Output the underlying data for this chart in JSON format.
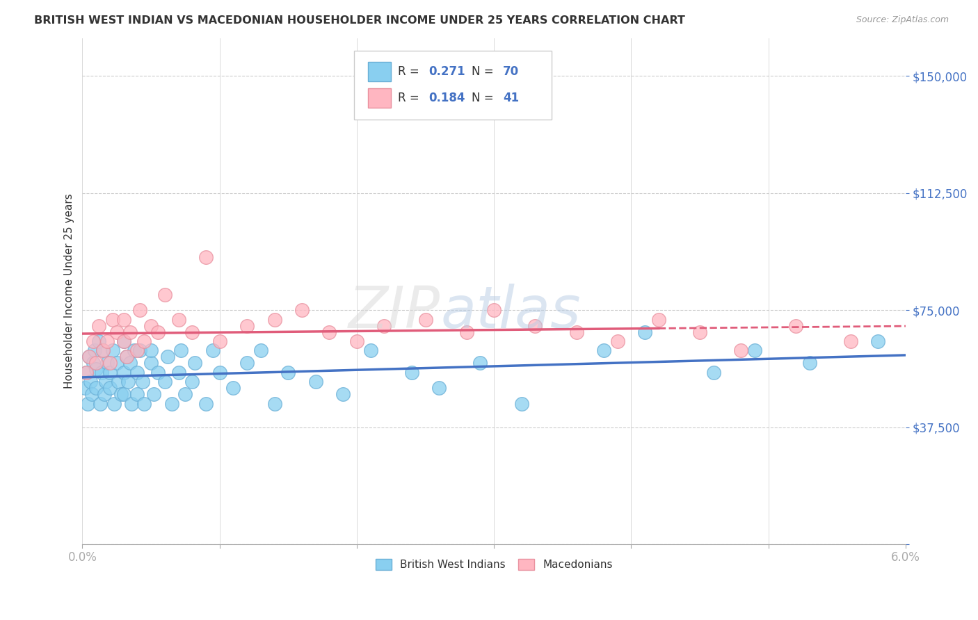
{
  "title": "BRITISH WEST INDIAN VS MACEDONIAN HOUSEHOLDER INCOME UNDER 25 YEARS CORRELATION CHART",
  "source": "Source: ZipAtlas.com",
  "ylabel": "Householder Income Under 25 years",
  "yticks": [
    0,
    37500,
    75000,
    112500,
    150000
  ],
  "ytick_labels": [
    "",
    "$37,500",
    "$75,000",
    "$112,500",
    "$150,000"
  ],
  "xlim": [
    0.0,
    0.06
  ],
  "ylim": [
    0,
    162000
  ],
  "legend1_R": "0.271",
  "legend1_N": "70",
  "legend2_R": "0.184",
  "legend2_N": "41",
  "blue_color": "#89CFF0",
  "blue_edge": "#6aafd6",
  "pink_color": "#FFB6C1",
  "pink_edge": "#e8909e",
  "line_blue": "#4472c4",
  "line_pink": "#e05c7a",
  "watermark_zip": "ZIP",
  "watermark_atlas": "atlas",
  "blue_points_x": [
    0.0002,
    0.0003,
    0.0004,
    0.0005,
    0.0006,
    0.0007,
    0.0008,
    0.0009,
    0.001,
    0.001,
    0.0012,
    0.0013,
    0.0014,
    0.0015,
    0.0016,
    0.0017,
    0.0018,
    0.002,
    0.002,
    0.0022,
    0.0023,
    0.0025,
    0.0026,
    0.0028,
    0.003,
    0.003,
    0.003,
    0.0032,
    0.0033,
    0.0035,
    0.0036,
    0.0038,
    0.004,
    0.004,
    0.0042,
    0.0044,
    0.0045,
    0.005,
    0.005,
    0.0052,
    0.0055,
    0.006,
    0.0062,
    0.0065,
    0.007,
    0.0072,
    0.0075,
    0.008,
    0.0082,
    0.009,
    0.0095,
    0.01,
    0.011,
    0.012,
    0.013,
    0.014,
    0.015,
    0.017,
    0.019,
    0.021,
    0.024,
    0.026,
    0.029,
    0.032,
    0.038,
    0.041,
    0.046,
    0.049,
    0.053,
    0.058
  ],
  "blue_points_y": [
    50000,
    55000,
    45000,
    60000,
    52000,
    48000,
    58000,
    62000,
    56000,
    50000,
    65000,
    45000,
    55000,
    62000,
    48000,
    52000,
    58000,
    55000,
    50000,
    62000,
    45000,
    58000,
    52000,
    48000,
    65000,
    55000,
    48000,
    60000,
    52000,
    58000,
    45000,
    62000,
    55000,
    48000,
    62000,
    52000,
    45000,
    58000,
    62000,
    48000,
    55000,
    52000,
    60000,
    45000,
    55000,
    62000,
    48000,
    52000,
    58000,
    45000,
    62000,
    55000,
    50000,
    58000,
    62000,
    45000,
    55000,
    52000,
    48000,
    62000,
    55000,
    50000,
    58000,
    45000,
    62000,
    68000,
    55000,
    62000,
    58000,
    65000
  ],
  "pink_points_x": [
    0.0003,
    0.0005,
    0.0008,
    0.001,
    0.0012,
    0.0015,
    0.0018,
    0.002,
    0.0022,
    0.0025,
    0.003,
    0.003,
    0.0032,
    0.0035,
    0.004,
    0.0042,
    0.0045,
    0.005,
    0.0055,
    0.006,
    0.007,
    0.008,
    0.009,
    0.01,
    0.012,
    0.014,
    0.016,
    0.018,
    0.02,
    0.022,
    0.025,
    0.028,
    0.03,
    0.033,
    0.036,
    0.039,
    0.042,
    0.045,
    0.048,
    0.052,
    0.056
  ],
  "pink_points_y": [
    55000,
    60000,
    65000,
    58000,
    70000,
    62000,
    65000,
    58000,
    72000,
    68000,
    65000,
    72000,
    60000,
    68000,
    62000,
    75000,
    65000,
    70000,
    68000,
    80000,
    72000,
    68000,
    92000,
    65000,
    70000,
    72000,
    75000,
    68000,
    65000,
    70000,
    72000,
    68000,
    75000,
    70000,
    68000,
    65000,
    72000,
    68000,
    62000,
    70000,
    65000
  ]
}
